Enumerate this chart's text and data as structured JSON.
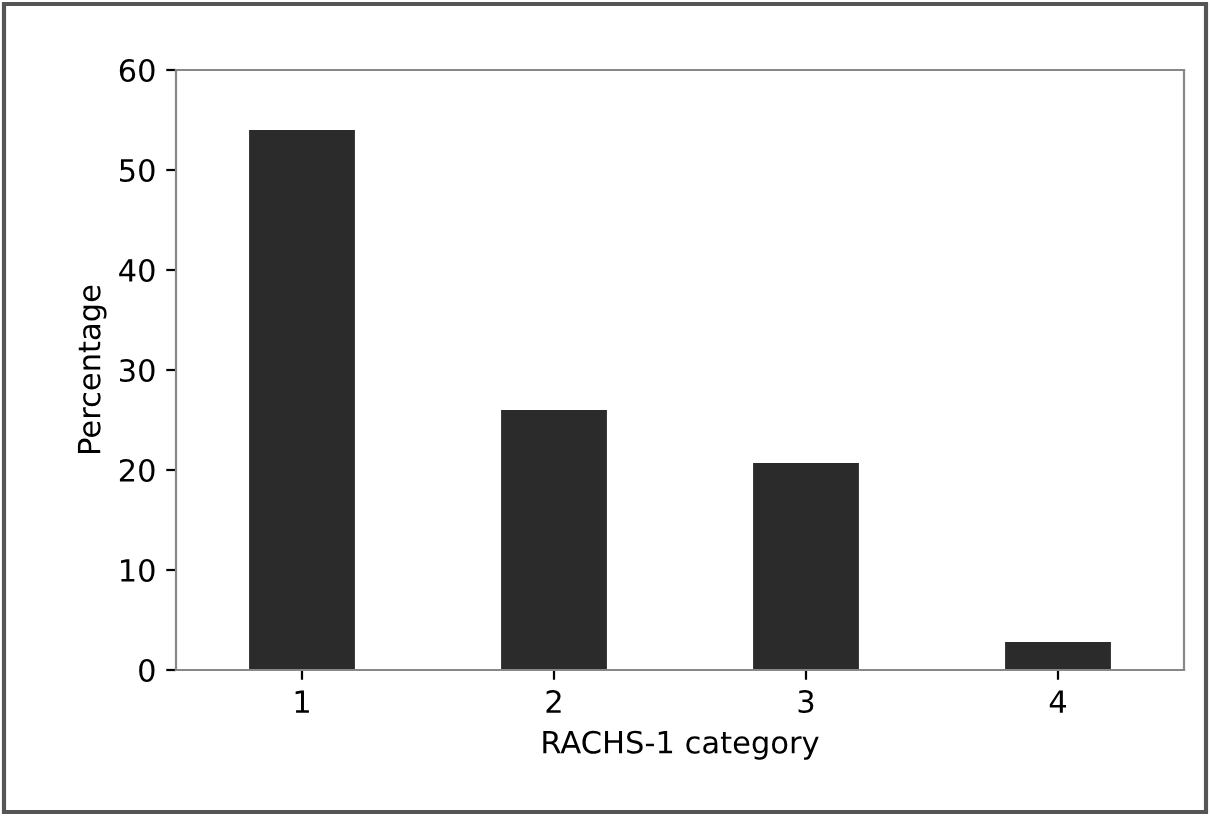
{
  "chart_data": {
    "type": "bar",
    "xlabel": "RACHS-1 category",
    "ylabel": "Percentage",
    "categories": [
      "1",
      "2",
      "3",
      "4"
    ],
    "values": [
      54,
      26,
      20.7,
      2.8
    ],
    "color": "#2b2b2b",
    "ylim": [
      0,
      60
    ],
    "yticks": [
      0,
      10,
      20,
      30,
      40,
      50,
      60
    ],
    "grid": false
  }
}
